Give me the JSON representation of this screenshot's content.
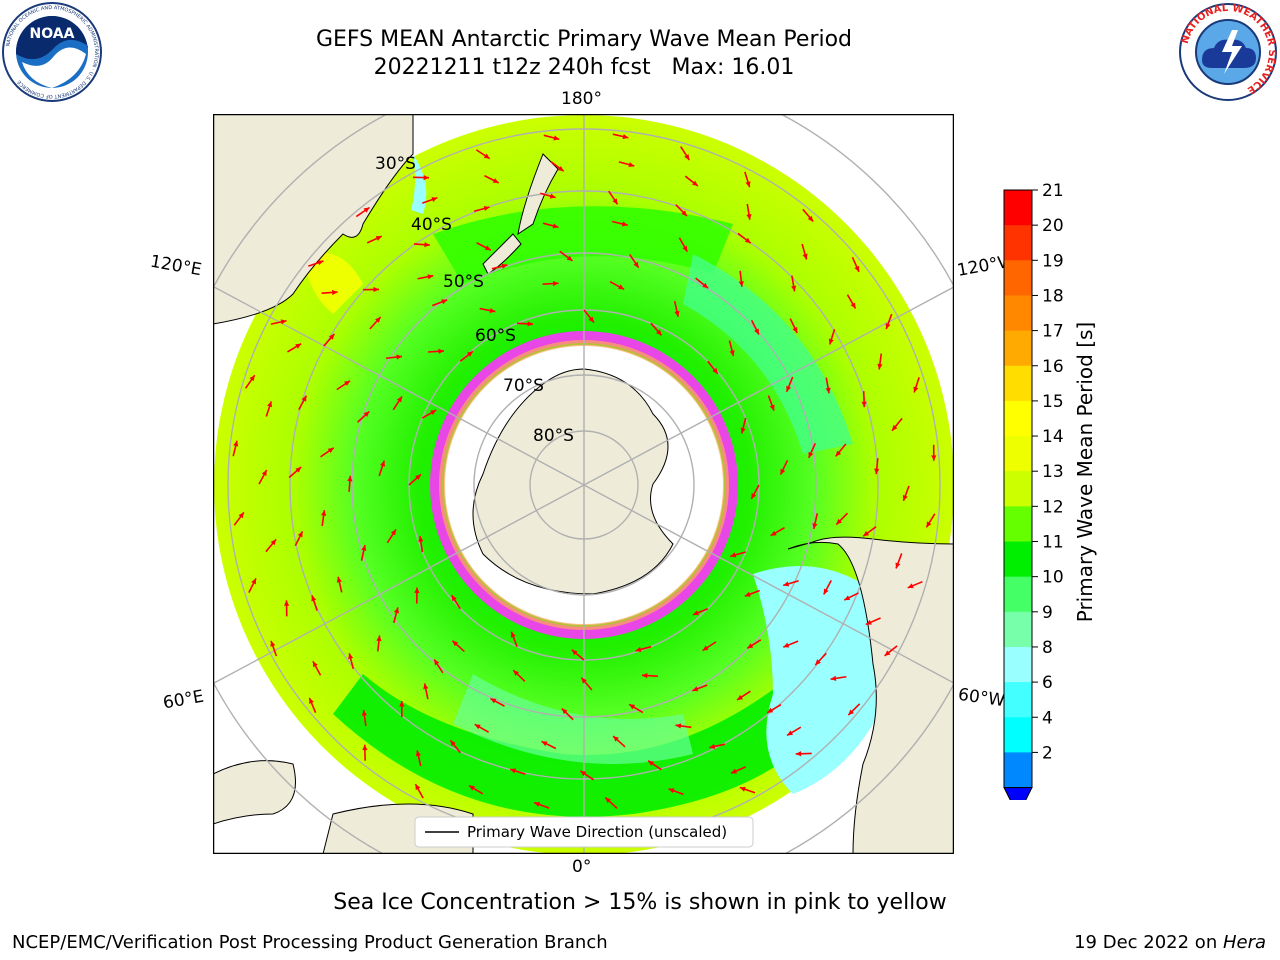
{
  "title": {
    "line1": "GEFS MEAN Antarctic Primary Wave Mean Period",
    "line2": "20221211 t12z 240h fcst   Max: 16.01"
  },
  "logos": {
    "left": {
      "icon": "noaa-logo-icon",
      "text": "NOAA",
      "ring_text": "NATIONAL OCEANIC AND ATMOSPHERIC ADMINISTRATION · U.S. DEPARTMENT OF COMMERCE"
    },
    "right": {
      "icon": "nws-logo-icon",
      "ring_text": "NATIONAL WEATHER SERVICE"
    }
  },
  "map": {
    "projection": "south-polar-stereographic",
    "longitude_labels": {
      "top": "180°",
      "bottom": "0°",
      "upper_left": "120°E",
      "upper_right": "120°W",
      "lower_left": "60°E",
      "lower_right": "60°W"
    },
    "latitude_labels": [
      "30°S",
      "40°S",
      "50°S",
      "60°S",
      "70°S",
      "80°S"
    ],
    "legend": "Primary Wave Direction (unscaled)",
    "colors": {
      "land": "#eeecd9",
      "ice_shelf": "#ffffff",
      "ocean_yellow_green": "#ccff00",
      "ocean_green": "#33ff00",
      "ocean_bright_green": "#00ee00",
      "ocean_light_green": "#55ff88",
      "ocean_cyan": "#99ffff",
      "arrow": "#ff0000",
      "sea_ice_edge": "#ff33ff",
      "grid": "#b0b0b0"
    }
  },
  "colorbar": {
    "label": "Primary Wave Mean Period [s]",
    "ticks": [
      "21",
      "20",
      "19",
      "18",
      "17",
      "16",
      "15",
      "14",
      "13",
      "12",
      "11",
      "10",
      "9",
      "8",
      "6",
      "4",
      "2"
    ],
    "colors_top_to_bottom": [
      "#ff0000",
      "#ff3300",
      "#ff6600",
      "#ff8800",
      "#ffaa00",
      "#ffdd00",
      "#ffff00",
      "#eeff00",
      "#ccff00",
      "#66ff00",
      "#00ee00",
      "#44ff66",
      "#77ffaa",
      "#99ffff",
      "#44ffff",
      "#00ffff",
      "#0088ff"
    ],
    "extend_color": "#0000ff"
  },
  "caption": "Sea Ice Concentration > 15% is shown in pink to yellow",
  "footer": {
    "left": "NCEP/EMC/Verification Post Processing Product Generation Branch",
    "right_prefix": "19 Dec 2022 on ",
    "right_italic": "Hera"
  }
}
